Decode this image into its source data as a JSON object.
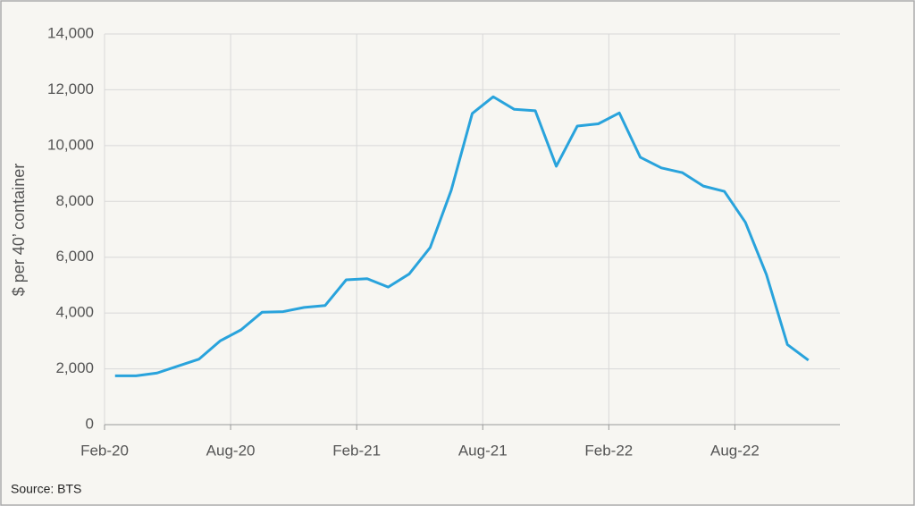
{
  "chart_data": {
    "type": "line",
    "categories": [
      "Feb-20",
      null,
      null,
      null,
      null,
      null,
      "Aug-20",
      null,
      null,
      null,
      null,
      null,
      "Feb-21",
      null,
      null,
      null,
      null,
      null,
      "Aug-21",
      null,
      null,
      null,
      null,
      null,
      "Feb-22",
      null,
      null,
      null,
      null,
      null,
      "Aug-22",
      null,
      null,
      null
    ],
    "series": [
      {
        "color": "#29a3dc",
        "values": [
          1750,
          1750,
          1850,
          2100,
          2350,
          3000,
          3400,
          4030,
          4050,
          4200,
          4270,
          5190,
          5230,
          4930,
          5400,
          6350,
          8400,
          11150,
          11750,
          11300,
          11250,
          9260,
          10700,
          10780,
          11170,
          9580,
          9200,
          9030,
          8550,
          8360,
          7250,
          5380,
          2870,
          2310
        ]
      }
    ],
    "y_label": "$ per 40’ container",
    "ylim": [
      0,
      14000
    ],
    "yticks": [
      0,
      {
        "value": 2000,
        "label": "2,000"
      },
      {
        "value": 4000,
        "label": "4,000"
      },
      {
        "value": 6000,
        "label": "6,000"
      },
      {
        "value": 8000,
        "label": "8,000"
      },
      {
        "value": 10000,
        "label": "10,000"
      },
      {
        "value": 12000,
        "label": "12,000"
      },
      {
        "value": 14000,
        "label": "14,000"
      }
    ],
    "grid": true,
    "source": "Source: BTS"
  }
}
